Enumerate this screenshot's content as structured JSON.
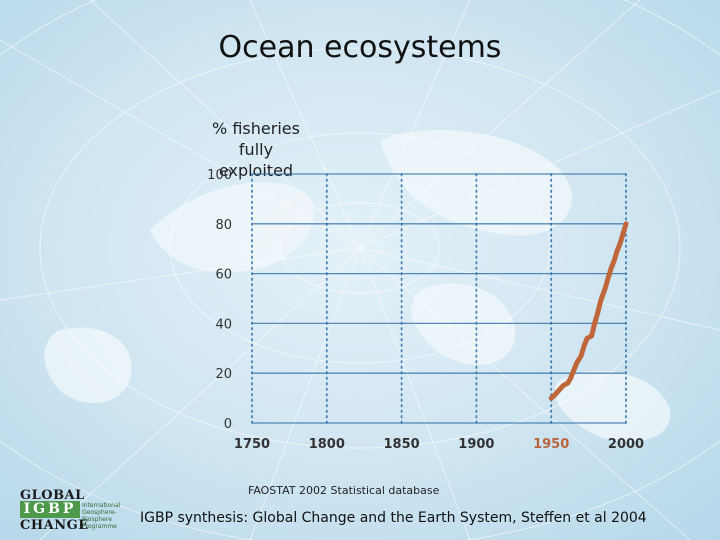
{
  "slide": {
    "title": "Ocean ecosystems",
    "ylabel_line1": "% fisheries fully",
    "ylabel_line2": "exploited",
    "source": "FAOSTAT 2002 Statistical database",
    "citation": "IGBP synthesis: Global Change and the Earth System, Steffen et al 2004"
  },
  "logo": {
    "line1": "GLOBAL",
    "line2": "IGBP",
    "line3": "CHANGE",
    "tagline": "International Geosphere-Biosphere Programme"
  },
  "colors": {
    "line": "#c0663b",
    "highlight_tick": "#b8643a",
    "axis_text": "#333333",
    "grid": "#2e6ea6"
  },
  "chart_data": {
    "type": "line",
    "title": "",
    "xlabel": "",
    "ylabel": "% fisheries fully exploited",
    "xlim": [
      1750,
      2000
    ],
    "ylim": [
      0,
      100
    ],
    "x_ticks": [
      1750,
      1800,
      1850,
      1900,
      1950,
      2000
    ],
    "y_ticks": [
      0,
      20,
      40,
      60,
      80,
      100
    ],
    "highlight_x_tick": 1950,
    "grid": true,
    "series": [
      {
        "x": [
          1950,
          1952,
          1955,
          1958,
          1961,
          1963,
          1965,
          1967,
          1970,
          1972,
          1974,
          1977,
          1979,
          1981,
          1983,
          1986,
          1988,
          1990,
          1992,
          1994,
          1996,
          1998,
          2000
        ],
        "y": [
          10,
          11,
          13,
          15,
          16,
          18,
          21,
          24,
          27,
          31,
          34,
          35,
          40,
          44,
          49,
          54,
          58,
          62,
          65,
          69,
          72,
          76,
          80
        ]
      }
    ]
  }
}
